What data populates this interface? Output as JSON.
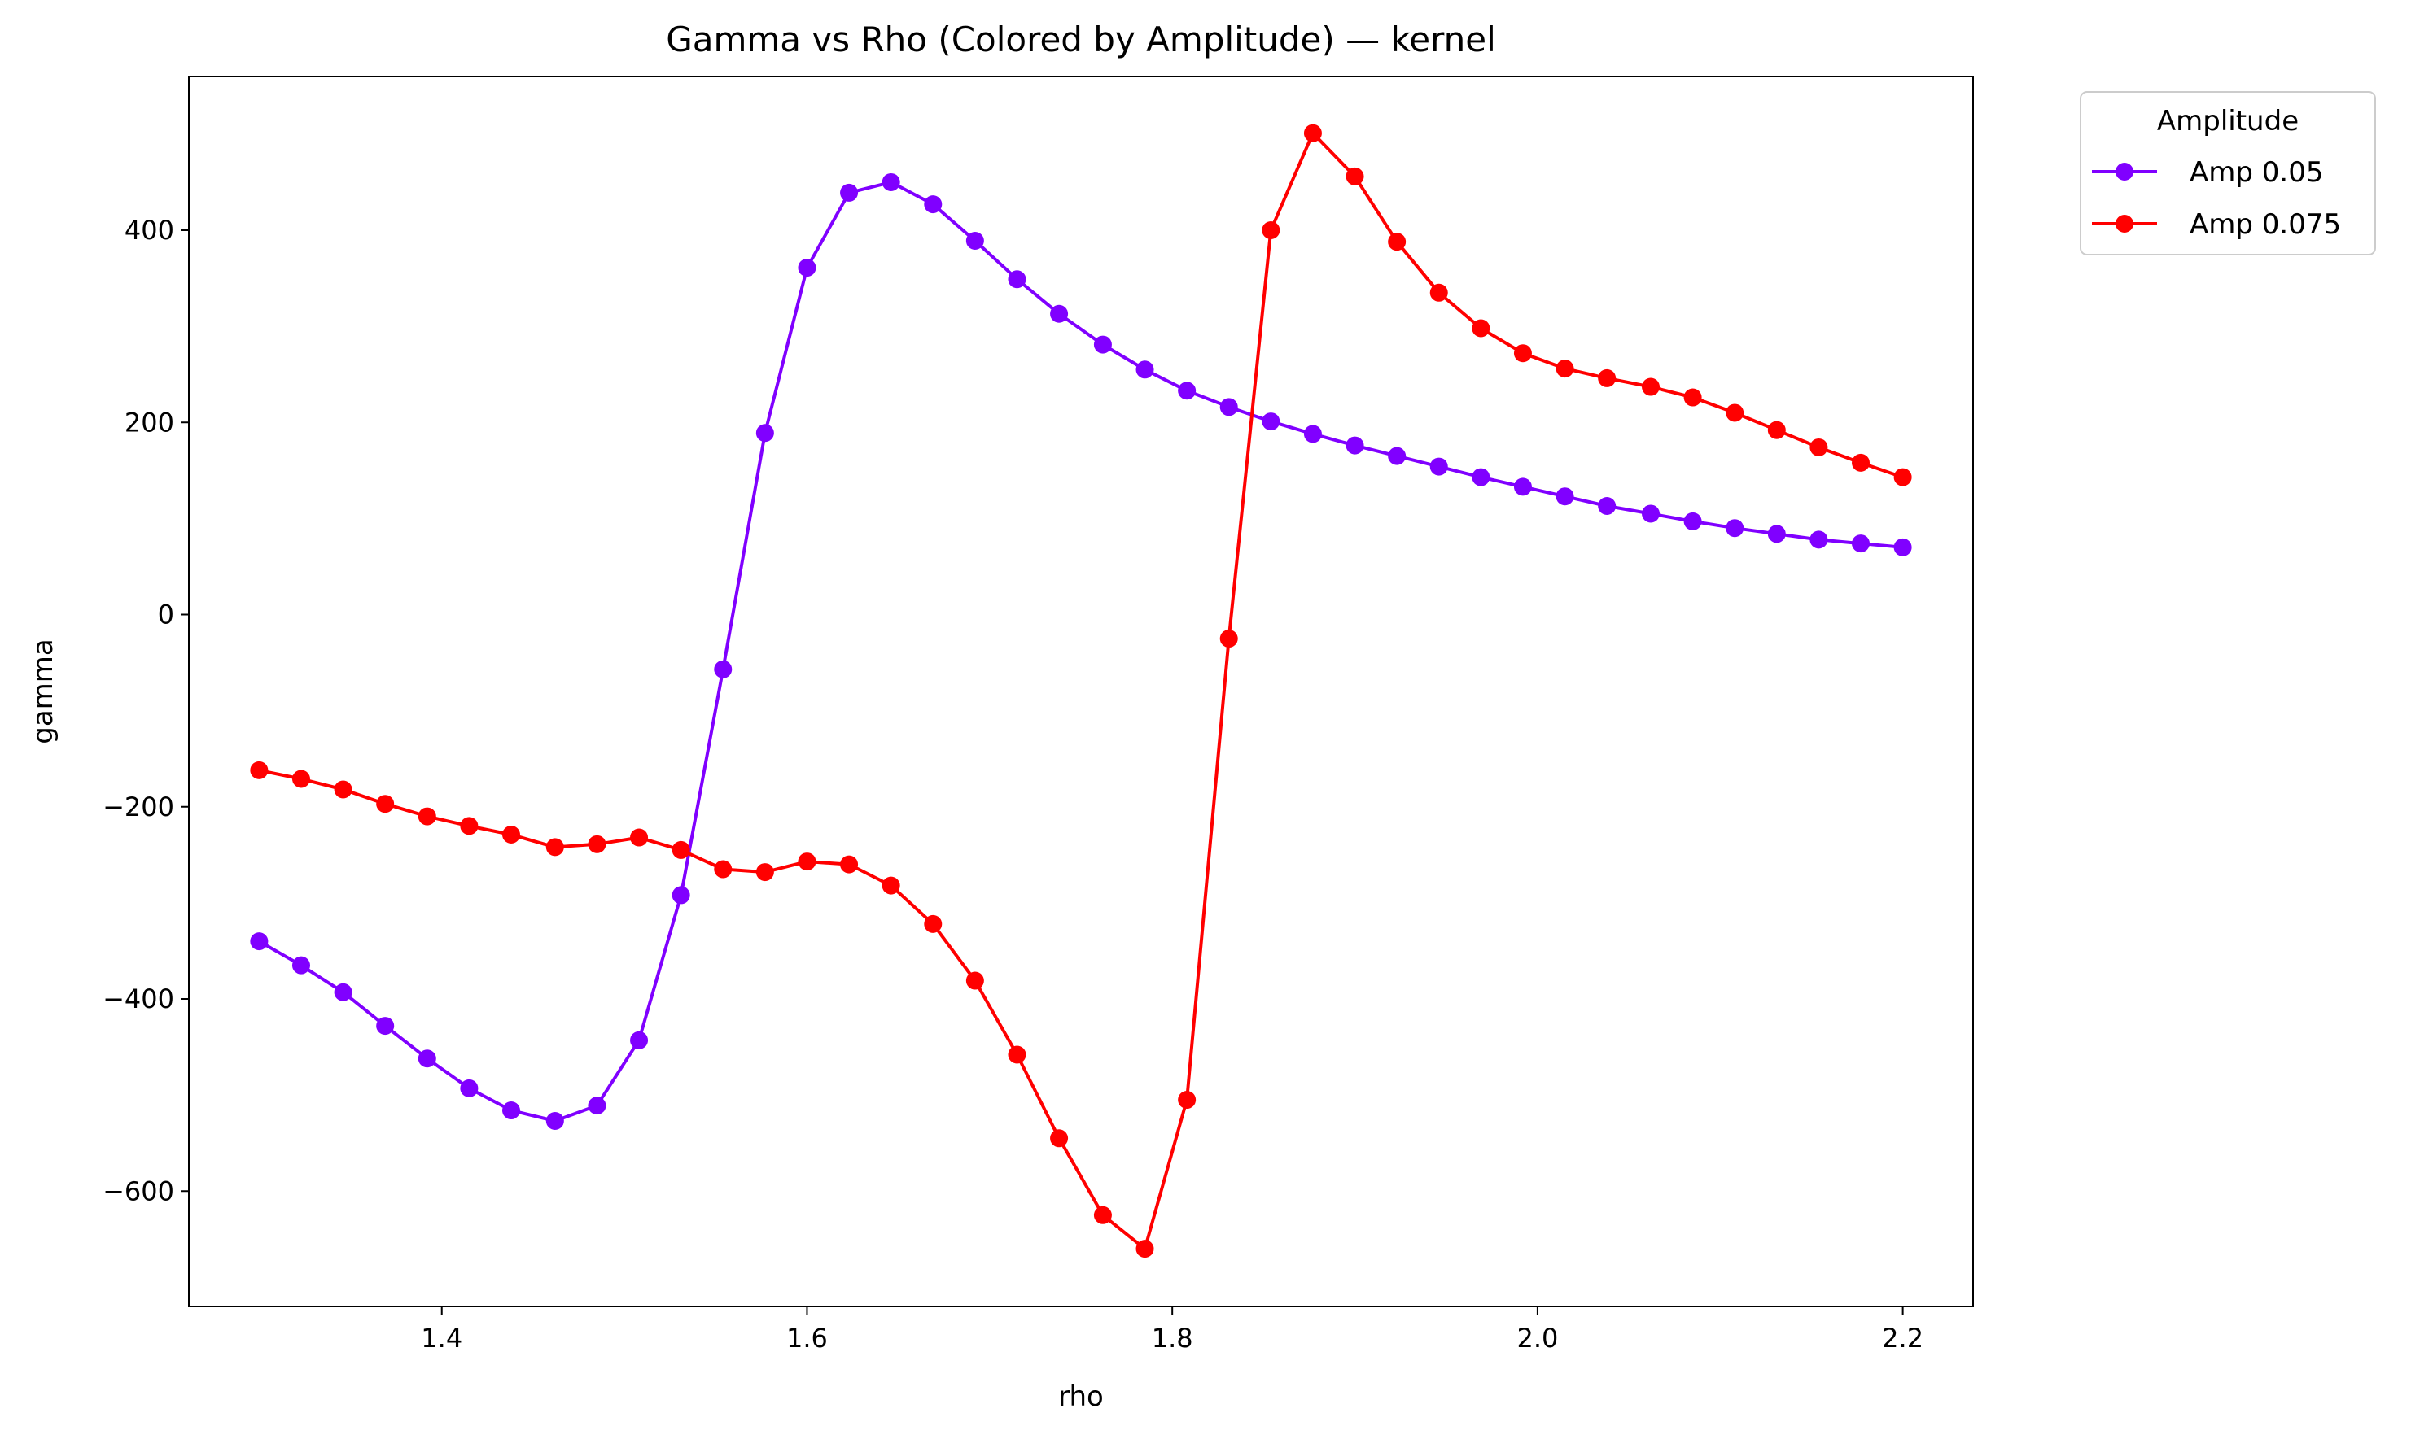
{
  "chart_data": {
    "type": "line",
    "title": "Gamma vs Rho (Colored by Amplitude) — kernel",
    "xlabel": "rho",
    "ylabel": "gamma",
    "xlim": [
      1.2615,
      2.2385
    ],
    "ylim": [
      -720,
      560
    ],
    "xticks": [
      1.4,
      1.6,
      1.8,
      2.0,
      2.2
    ],
    "xtick_labels": [
      "1.4",
      "1.6",
      "1.8",
      "2.0",
      "2.2"
    ],
    "yticks": [
      -600,
      -400,
      -200,
      0,
      200,
      400
    ],
    "ytick_labels": [
      "−600",
      "−400",
      "−200",
      "0",
      "200",
      "400"
    ],
    "grid": false,
    "legend": {
      "title": "Amplitude",
      "position": "outside-top-right"
    },
    "x": [
      1.3,
      1.323,
      1.346,
      1.369,
      1.392,
      1.415,
      1.438,
      1.462,
      1.485,
      1.508,
      1.531,
      1.554,
      1.577,
      1.6,
      1.623,
      1.646,
      1.669,
      1.692,
      1.715,
      1.738,
      1.762,
      1.785,
      1.808,
      1.831,
      1.854,
      1.877,
      1.9,
      1.923,
      1.946,
      1.969,
      1.992,
      2.015,
      2.038,
      2.062,
      2.085,
      2.108,
      2.131,
      2.154,
      2.177,
      2.2
    ],
    "series": [
      {
        "name": "Amp 0.05",
        "color": "#8000ff",
        "values": [
          -340,
          -365,
          -393,
          -428,
          -462,
          -493,
          -516,
          -527,
          -511,
          -443,
          -292,
          -57,
          189,
          361,
          439,
          450,
          427,
          389,
          349,
          313,
          281,
          255,
          233,
          216,
          201,
          188,
          176,
          165,
          154,
          143,
          133,
          123,
          113,
          105,
          97,
          90,
          84,
          78,
          74,
          70
        ]
      },
      {
        "name": "Amp 0.075",
        "color": "#ff0000",
        "values": [
          -162,
          -171,
          -182,
          -197,
          -210,
          -220,
          -229,
          -242,
          -239,
          -232,
          -245,
          -265,
          -268,
          -257,
          -260,
          -282,
          -322,
          -381,
          -458,
          -545,
          -625,
          -660,
          -505,
          -25,
          400,
          501,
          456,
          388,
          335,
          298,
          272,
          256,
          246,
          237,
          226,
          210,
          192,
          174,
          158,
          143
        ]
      }
    ]
  }
}
